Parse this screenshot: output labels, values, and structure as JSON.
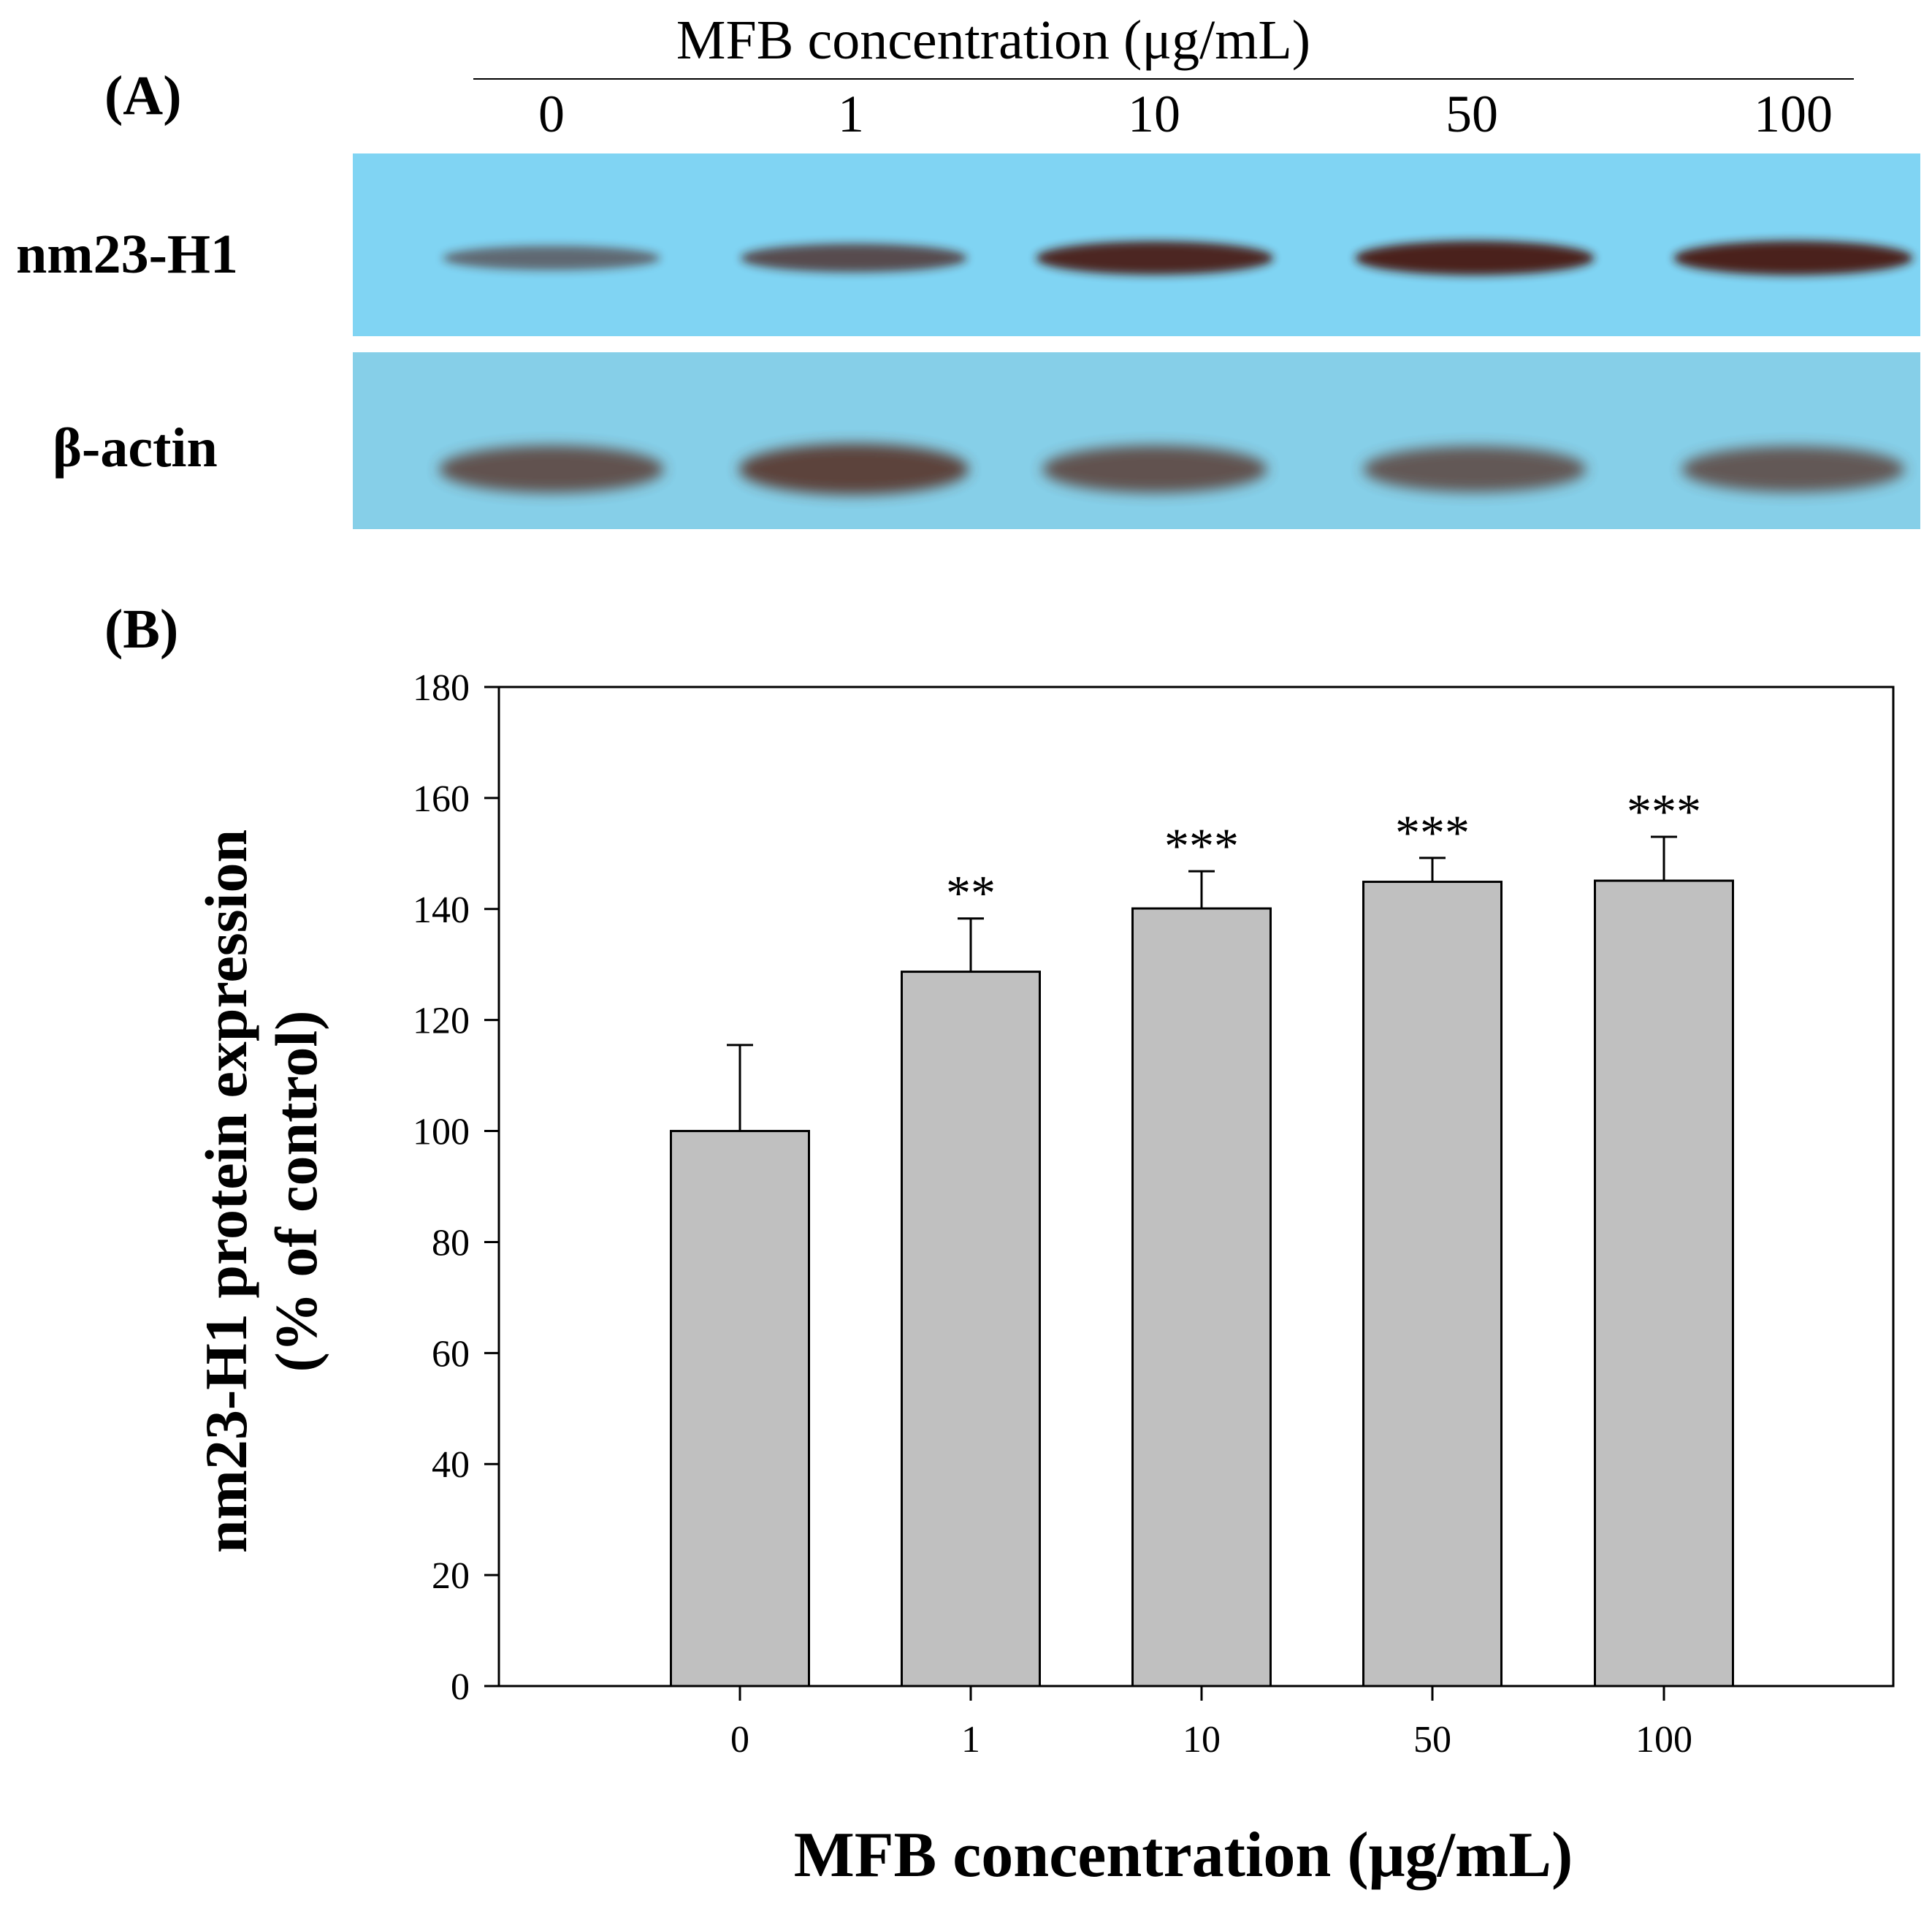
{
  "panel_a": {
    "label": "(A)",
    "header": "MFB concentration (μg/mL)",
    "lanes": [
      "0",
      "1",
      "10",
      "50",
      "100"
    ],
    "rows": [
      {
        "label": "nm23-H1",
        "band_color": "#4a1d12",
        "intensity": [
          0.35,
          0.6,
          0.9,
          0.95,
          0.95
        ]
      },
      {
        "label": "β-actin",
        "band_color": "#5a3a30",
        "intensity": [
          0.75,
          0.9,
          0.75,
          0.7,
          0.7
        ]
      }
    ],
    "membrane_color": "#7fd3f2"
  },
  "panel_b": {
    "label": "(B)"
  },
  "chart_data": {
    "type": "bar",
    "categories": [
      "0",
      "1",
      "10",
      "50",
      "100"
    ],
    "values": [
      100,
      128.7,
      140.1,
      144.9,
      145.1
    ],
    "errors": [
      15.5,
      9.6,
      6.7,
      4.3,
      7.9
    ],
    "significance": [
      "",
      "**",
      "***",
      "***",
      "***"
    ],
    "xlabel": "MFB concentration (μg/mL)",
    "ylabel_line1": "nm23-H1 protein expression",
    "ylabel_line2": "(% of control)",
    "ylim": [
      0,
      180
    ],
    "yticks": [
      0,
      20,
      40,
      60,
      80,
      100,
      120,
      140,
      160,
      180
    ],
    "bar_color": "#c0c0c0",
    "grid": false
  }
}
